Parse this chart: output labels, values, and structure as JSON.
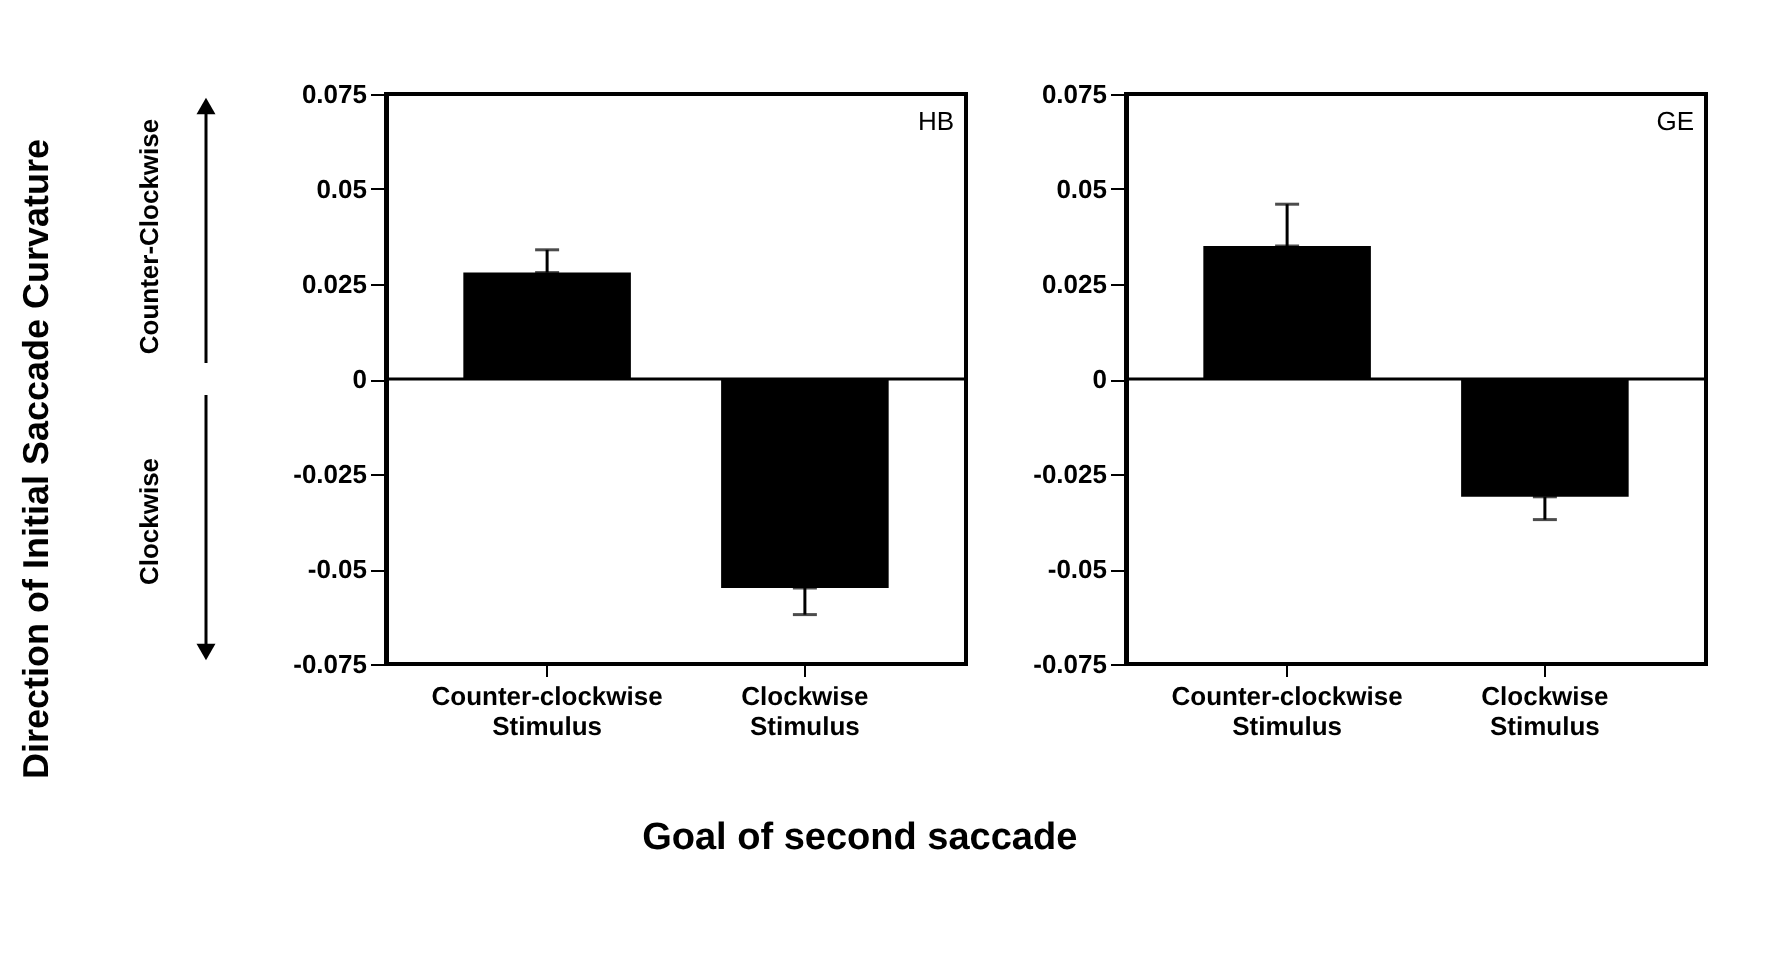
{
  "chart_data": [
    {
      "type": "bar",
      "xlabel": "Goal of second saccade",
      "ylabel": "Direction of Initial Saccade Curvature",
      "categories": [
        "Counter-clockwise\nStimulus",
        "Clockwise\nStimulus"
      ],
      "series": [
        {
          "color": "#000000",
          "values": [
            0.028,
            -0.055
          ],
          "errors": [
            [
              0.028,
              0.034
            ],
            [
              -0.062,
              -0.055
            ]
          ]
        }
      ],
      "ylim": [
        -0.075,
        0.075
      ],
      "yticks": [
        -0.075,
        -0.05,
        -0.025,
        0,
        0.025,
        0.05,
        0.075
      ],
      "annotations": [
        "HB",
        "Counter-Clockwise",
        "Clockwise"
      ]
    },
    {
      "type": "bar",
      "categories": [
        "Counter-clockwise\nStimulus",
        "Clockwise\nStimulus"
      ],
      "series": [
        {
          "color": "#000000",
          "values": [
            0.035,
            -0.031
          ],
          "errors": [
            [
              0.035,
              0.046
            ],
            [
              -0.037,
              -0.031
            ]
          ]
        }
      ],
      "ylim": [
        -0.075,
        0.075
      ],
      "yticks": [
        -0.075,
        -0.05,
        -0.025,
        0,
        0.025,
        0.05,
        0.075
      ],
      "annotations": [
        "GE"
      ]
    }
  ]
}
